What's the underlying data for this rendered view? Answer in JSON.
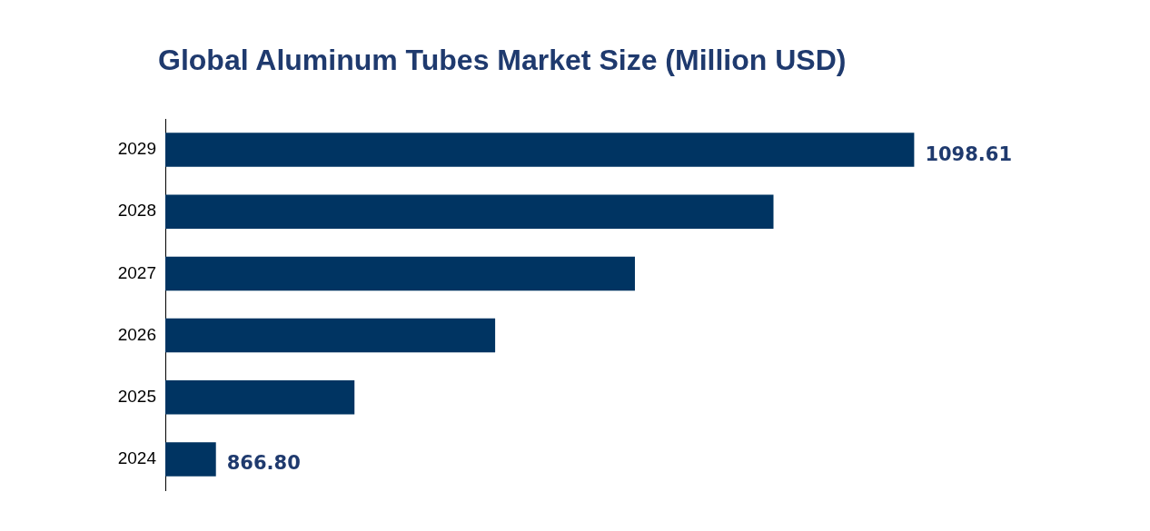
{
  "chart_data": {
    "type": "bar",
    "title": "Global Aluminum Tubes Market Size (Million USD)",
    "orientation": "horizontal",
    "categories": [
      "2029",
      "2028",
      "2027",
      "2026",
      "2025",
      "2024"
    ],
    "values": [
      1098.61,
      1051.9,
      1005.9,
      959.5,
      912.8,
      866.8
    ],
    "value_labels": [
      "1098.61",
      null,
      null,
      null,
      null,
      "866.80"
    ],
    "color": "#003462",
    "tick_labels": "y"
  }
}
